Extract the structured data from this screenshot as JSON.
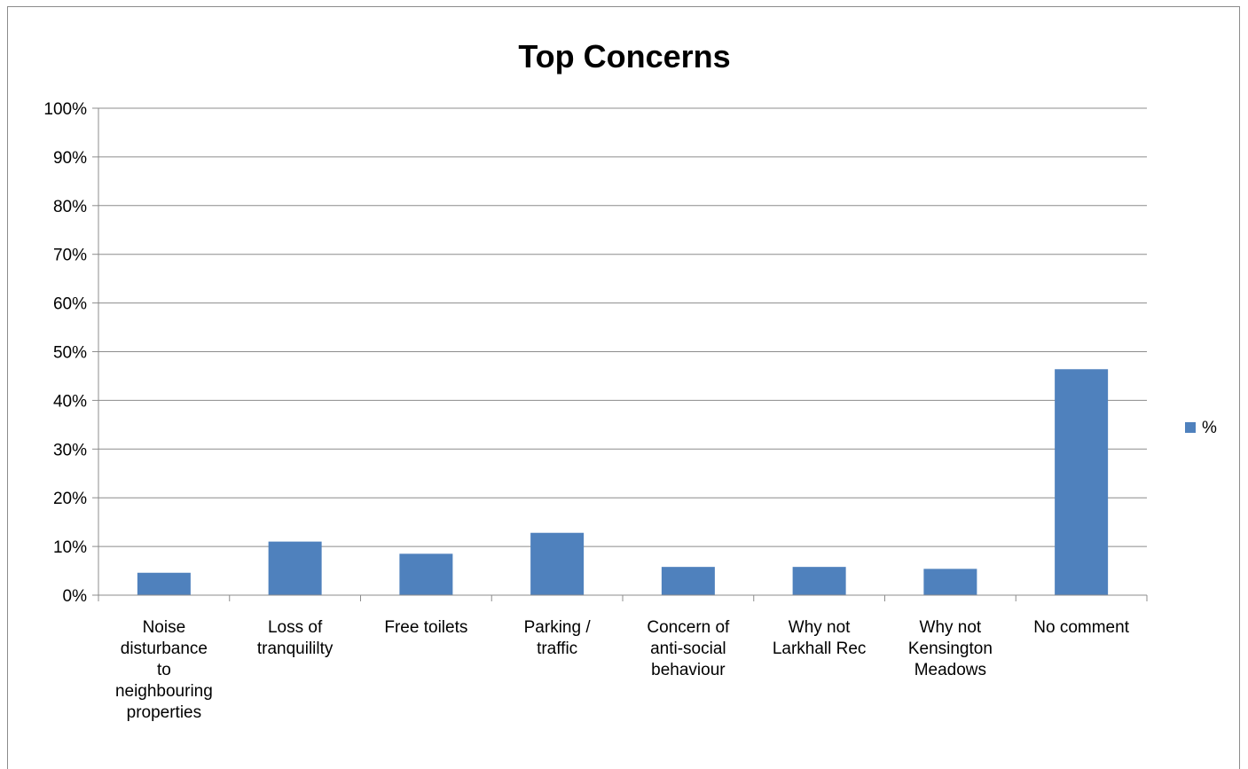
{
  "chart_data": {
    "type": "bar",
    "title": "Top Concerns",
    "xlabel": "",
    "ylabel": "",
    "ylim": [
      0,
      100
    ],
    "yticks": [
      "0%",
      "10%",
      "20%",
      "30%",
      "40%",
      "50%",
      "60%",
      "70%",
      "80%",
      "90%",
      "100%"
    ],
    "categories": [
      [
        "Noise",
        "disturbance",
        "to",
        "neighbouring",
        "properties"
      ],
      [
        "Loss of",
        "tranquililty"
      ],
      [
        "Free toilets"
      ],
      [
        "Parking /",
        "traffic"
      ],
      [
        "Concern of",
        "anti-social",
        "behaviour"
      ],
      [
        "Why not",
        "Larkhall Rec"
      ],
      [
        "Why not",
        "Kensington",
        "Meadows"
      ],
      [
        "No comment"
      ]
    ],
    "series": [
      {
        "name": "%",
        "color": "#4f81bd",
        "values": [
          4.6,
          11.0,
          8.5,
          12.8,
          5.8,
          5.8,
          5.4,
          46.4
        ]
      }
    ],
    "grid": true,
    "legend": "right"
  }
}
